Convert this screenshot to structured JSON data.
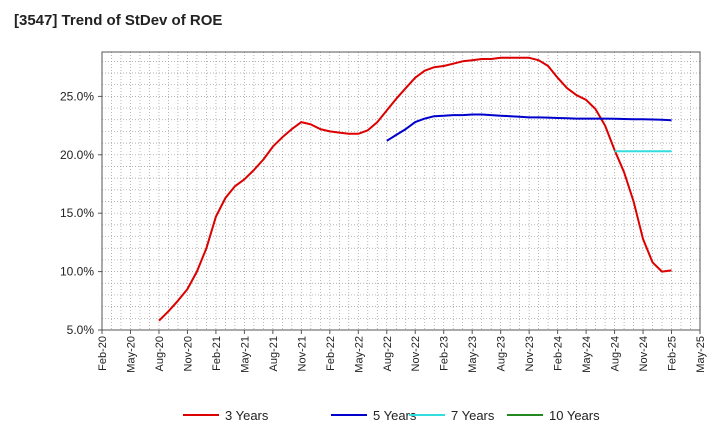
{
  "title": "[3547]  Trend of StDev of ROE",
  "chart_data": {
    "type": "line",
    "title": "[3547]  Trend of StDev of ROE",
    "xlabel": "",
    "ylabel": "",
    "x_ticks": [
      "Feb-20",
      "May-20",
      "Aug-20",
      "Nov-20",
      "Feb-21",
      "May-21",
      "Aug-21",
      "Nov-21",
      "Feb-22",
      "May-22",
      "Aug-22",
      "Nov-22",
      "Feb-23",
      "May-23",
      "Aug-23",
      "Nov-23",
      "Feb-24",
      "May-24",
      "Aug-24",
      "Nov-24",
      "Feb-25",
      "May-25"
    ],
    "y_ticks": [
      "5.0%",
      "10.0%",
      "15.0%",
      "20.0%",
      "25.0%"
    ],
    "ylim": [
      5,
      28.8
    ],
    "grid": true,
    "legend_position": "bottom",
    "series": [
      {
        "name": "3 Years",
        "color": "#dd0000",
        "points": [
          [
            "2020-08",
            5.8
          ],
          [
            "2020-09",
            6.6
          ],
          [
            "2020-10",
            7.5
          ],
          [
            "2020-11",
            8.5
          ],
          [
            "2020-12",
            10.0
          ],
          [
            "2021-01",
            12.0
          ],
          [
            "2021-02",
            14.7
          ],
          [
            "2021-03",
            16.3
          ],
          [
            "2021-04",
            17.3
          ],
          [
            "2021-05",
            17.9
          ],
          [
            "2021-06",
            18.7
          ],
          [
            "2021-07",
            19.6
          ],
          [
            "2021-08",
            20.7
          ],
          [
            "2021-09",
            21.5
          ],
          [
            "2021-10",
            22.2
          ],
          [
            "2021-11",
            22.8
          ],
          [
            "2021-12",
            22.6
          ],
          [
            "2022-01",
            22.2
          ],
          [
            "2022-02",
            22.0
          ],
          [
            "2022-03",
            21.9
          ],
          [
            "2022-04",
            21.8
          ],
          [
            "2022-05",
            21.8
          ],
          [
            "2022-06",
            22.1
          ],
          [
            "2022-07",
            22.8
          ],
          [
            "2022-08",
            23.8
          ],
          [
            "2022-09",
            24.8
          ],
          [
            "2022-10",
            25.7
          ],
          [
            "2022-11",
            26.6
          ],
          [
            "2022-12",
            27.2
          ],
          [
            "2023-01",
            27.5
          ],
          [
            "2023-02",
            27.6
          ],
          [
            "2023-03",
            27.8
          ],
          [
            "2023-04",
            28.0
          ],
          [
            "2023-05",
            28.1
          ],
          [
            "2023-06",
            28.2
          ],
          [
            "2023-07",
            28.2
          ],
          [
            "2023-08",
            28.3
          ],
          [
            "2023-09",
            28.3
          ],
          [
            "2023-10",
            28.3
          ],
          [
            "2023-11",
            28.3
          ],
          [
            "2023-12",
            28.1
          ],
          [
            "2024-01",
            27.6
          ],
          [
            "2024-02",
            26.6
          ],
          [
            "2024-03",
            25.7
          ],
          [
            "2024-04",
            25.1
          ],
          [
            "2024-05",
            24.7
          ],
          [
            "2024-06",
            23.9
          ],
          [
            "2024-07",
            22.5
          ],
          [
            "2024-08",
            20.4
          ],
          [
            "2024-09",
            18.5
          ],
          [
            "2024-10",
            16.0
          ],
          [
            "2024-11",
            12.8
          ],
          [
            "2024-12",
            10.8
          ],
          [
            "2025-01",
            10.0
          ],
          [
            "2025-02",
            10.1
          ]
        ]
      },
      {
        "name": "5 Years",
        "color": "#0000cc",
        "points": [
          [
            "2022-08",
            21.2
          ],
          [
            "2022-09",
            21.7
          ],
          [
            "2022-10",
            22.2
          ],
          [
            "2022-11",
            22.8
          ],
          [
            "2022-12",
            23.1
          ],
          [
            "2023-01",
            23.3
          ],
          [
            "2023-02",
            23.35
          ],
          [
            "2023-03",
            23.4
          ],
          [
            "2023-04",
            23.4
          ],
          [
            "2023-05",
            23.45
          ],
          [
            "2023-06",
            23.45
          ],
          [
            "2023-07",
            23.4
          ],
          [
            "2023-08",
            23.35
          ],
          [
            "2023-09",
            23.3
          ],
          [
            "2023-10",
            23.25
          ],
          [
            "2023-11",
            23.2
          ],
          [
            "2023-12",
            23.2
          ],
          [
            "2024-01",
            23.18
          ],
          [
            "2024-02",
            23.15
          ],
          [
            "2024-03",
            23.12
          ],
          [
            "2024-04",
            23.1
          ],
          [
            "2024-05",
            23.1
          ],
          [
            "2024-06",
            23.1
          ],
          [
            "2024-07",
            23.1
          ],
          [
            "2024-08",
            23.08
          ],
          [
            "2024-09",
            23.06
          ],
          [
            "2024-10",
            23.05
          ],
          [
            "2024-11",
            23.04
          ],
          [
            "2024-12",
            23.02
          ],
          [
            "2025-01",
            23.0
          ],
          [
            "2025-02",
            22.95
          ]
        ]
      },
      {
        "name": "7 Years",
        "color": "#33dddd",
        "points": [
          [
            "2024-08",
            20.3
          ],
          [
            "2024-09",
            20.3
          ],
          [
            "2024-10",
            20.3
          ],
          [
            "2024-11",
            20.3
          ],
          [
            "2024-12",
            20.3
          ],
          [
            "2025-01",
            20.3
          ],
          [
            "2025-02",
            20.3
          ]
        ]
      },
      {
        "name": "10 Years",
        "color": "#228822",
        "points": []
      }
    ]
  }
}
